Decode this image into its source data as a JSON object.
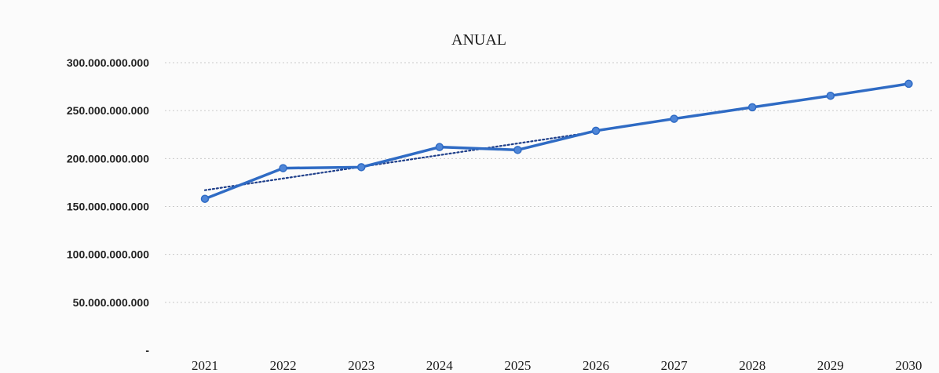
{
  "chart_data": {
    "type": "line",
    "title": "ANUAL",
    "xlabel": "",
    "ylabel": "",
    "categories": [
      "2021",
      "2022",
      "2023",
      "2024",
      "2025",
      "2026",
      "2027",
      "2028",
      "2029",
      "2030"
    ],
    "series": [
      {
        "values": [
          158000000000,
          190000000000,
          191000000000,
          212000000000,
          209000000000,
          229000000000,
          241500000000,
          253500000000,
          265500000000,
          278000000000
        ],
        "color": "#2f6bc4",
        "marker": "circle"
      }
    ],
    "trendline": {
      "style": "dotted",
      "color": "#1f3f8a",
      "start": 167000000000,
      "end": 228000000000,
      "span": [
        "2021",
        "2026"
      ]
    },
    "yticks": [
      0,
      50000000000,
      100000000000,
      150000000000,
      200000000000,
      250000000000,
      300000000000
    ],
    "ytick_labels": [
      "-",
      "50.000.000.000",
      "100.000.000.000",
      "150.000.000.000",
      "200.000.000.000",
      "250.000.000.000",
      "300.000.000.000"
    ],
    "ylim": [
      0,
      300000000000
    ],
    "grid": true,
    "legend": "none"
  }
}
